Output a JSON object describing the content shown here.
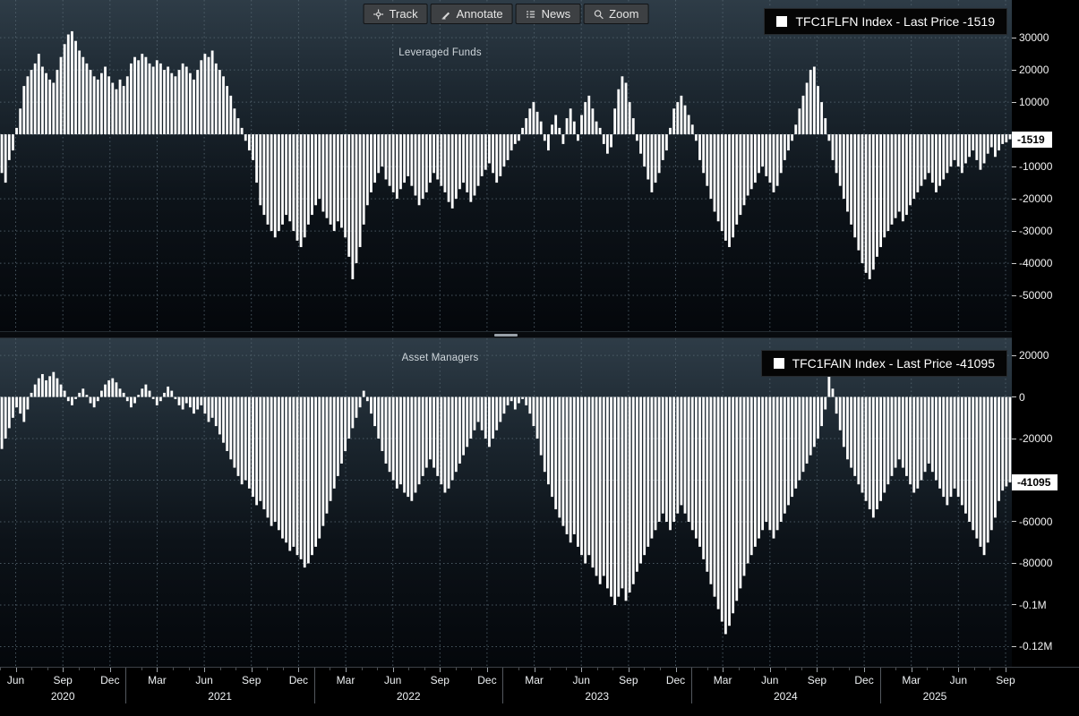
{
  "toolbar": {
    "track_label": "Track",
    "annotate_label": "Annotate",
    "news_label": "News",
    "zoom_label": "Zoom"
  },
  "colors": {
    "bar": "#ffffff",
    "grid": "#54646f",
    "axis_bg": "#000000",
    "panel_bg_top": "#2e3c47",
    "panel_bg_bottom": "#04070b",
    "tag_bg": "#ffffff",
    "tag_text": "#000000",
    "legend_bg": "#050505"
  },
  "x_axis": {
    "months_total": 64.4,
    "month_ticks": [
      {
        "m": 1,
        "label": "Jun"
      },
      {
        "m": 4,
        "label": "Sep"
      },
      {
        "m": 7,
        "label": "Dec"
      },
      {
        "m": 10,
        "label": "Mar"
      },
      {
        "m": 13,
        "label": "Jun"
      },
      {
        "m": 16,
        "label": "Sep"
      },
      {
        "m": 19,
        "label": "Dec"
      },
      {
        "m": 22,
        "label": "Mar"
      },
      {
        "m": 25,
        "label": "Jun"
      },
      {
        "m": 28,
        "label": "Sep"
      },
      {
        "m": 31,
        "label": "Dec"
      },
      {
        "m": 34,
        "label": "Mar"
      },
      {
        "m": 37,
        "label": "Jun"
      },
      {
        "m": 40,
        "label": "Sep"
      },
      {
        "m": 43,
        "label": "Dec"
      },
      {
        "m": 46,
        "label": "Mar"
      },
      {
        "m": 49,
        "label": "Jun"
      },
      {
        "m": 52,
        "label": "Sep"
      },
      {
        "m": 55,
        "label": "Dec"
      },
      {
        "m": 58,
        "label": "Mar"
      },
      {
        "m": 61,
        "label": "Jun"
      },
      {
        "m": 64,
        "label": "Sep"
      }
    ],
    "years": [
      {
        "label": "2020",
        "m_center": 4
      },
      {
        "label": "2021",
        "m_center": 14
      },
      {
        "label": "2022",
        "m_center": 26
      },
      {
        "label": "2023",
        "m_center": 38
      },
      {
        "label": "2024",
        "m_center": 50
      },
      {
        "label": "2025",
        "m_center": 59.5
      }
    ],
    "year_boundaries": [
      8,
      20,
      32,
      44,
      56
    ]
  },
  "chart_data": [
    {
      "type": "bar",
      "name": "TFC1FLFN Index",
      "title": "Leveraged Funds",
      "legend": "TFC1FLFN Index - Last Price -1519",
      "last_price_value": -1519,
      "last_price_label": "-1519",
      "frequency": "weekly",
      "x_start": "2020-05",
      "x_end": "2025-09",
      "ylim": [
        -61100,
        41700
      ],
      "grid_values": [
        30000,
        20000,
        10000,
        0,
        -10000,
        -20000,
        -30000,
        -40000,
        -50000
      ],
      "y_ticks": [
        {
          "v": 30000,
          "label": "30000"
        },
        {
          "v": 20000,
          "label": "20000"
        },
        {
          "v": 10000,
          "label": "10000"
        },
        {
          "v": -10000,
          "label": "-10000"
        },
        {
          "v": -20000,
          "label": "-20000"
        },
        {
          "v": -30000,
          "label": "-30000"
        },
        {
          "v": -40000,
          "label": "-40000"
        },
        {
          "v": -50000,
          "label": "-50000"
        }
      ],
      "values": [
        -12000,
        -15000,
        -8000,
        -5000,
        2000,
        8000,
        15000,
        18000,
        20000,
        22000,
        25000,
        21000,
        19000,
        17000,
        16000,
        20000,
        24000,
        28000,
        31000,
        32000,
        29000,
        26000,
        24000,
        22000,
        20000,
        18000,
        17000,
        19000,
        21000,
        18000,
        16000,
        14000,
        17000,
        15000,
        18000,
        22000,
        24000,
        23000,
        25000,
        24000,
        22000,
        21000,
        23000,
        22000,
        20000,
        21000,
        19000,
        18000,
        20000,
        22000,
        21000,
        19000,
        17000,
        20000,
        23000,
        25000,
        24000,
        26000,
        22000,
        20000,
        18000,
        15000,
        12000,
        8000,
        5000,
        2000,
        -2000,
        -5000,
        -8000,
        -15000,
        -22000,
        -25000,
        -28000,
        -30000,
        -32000,
        -30000,
        -28000,
        -25000,
        -27000,
        -30000,
        -33000,
        -35000,
        -32000,
        -28000,
        -25000,
        -22000,
        -20000,
        -24000,
        -26000,
        -28000,
        -30000,
        -27000,
        -29000,
        -32000,
        -38000,
        -45000,
        -40000,
        -35000,
        -28000,
        -22000,
        -18000,
        -15000,
        -12000,
        -10000,
        -14000,
        -16000,
        -18000,
        -20000,
        -17000,
        -15000,
        -13000,
        -16000,
        -19000,
        -22000,
        -20000,
        -18000,
        -15000,
        -12000,
        -14000,
        -16000,
        -18000,
        -21000,
        -23000,
        -20000,
        -17000,
        -15000,
        -18000,
        -21000,
        -19000,
        -16000,
        -13000,
        -11000,
        -9000,
        -12000,
        -15000,
        -13000,
        -10000,
        -8000,
        -5000,
        -3000,
        -2000,
        2000,
        5000,
        8000,
        10000,
        7000,
        4000,
        -2000,
        -5000,
        3000,
        6000,
        2000,
        -3000,
        5000,
        8000,
        4000,
        -2000,
        6000,
        10000,
        12000,
        8000,
        4000,
        2000,
        -3000,
        -6000,
        -4000,
        8000,
        14000,
        18000,
        16000,
        10000,
        5000,
        -2000,
        -6000,
        -10000,
        -14000,
        -18000,
        -15000,
        -12000,
        -8000,
        -5000,
        2000,
        8000,
        10000,
        12000,
        9000,
        6000,
        3000,
        -2000,
        -8000,
        -12000,
        -16000,
        -20000,
        -24000,
        -27000,
        -30000,
        -33000,
        -35000,
        -32000,
        -28000,
        -25000,
        -22000,
        -19000,
        -17000,
        -15000,
        -12000,
        -10000,
        -13000,
        -15000,
        -18000,
        -16000,
        -12000,
        -8000,
        -5000,
        -2000,
        3000,
        8000,
        12000,
        16000,
        20000,
        21000,
        15000,
        10000,
        5000,
        -2000,
        -8000,
        -12000,
        -16000,
        -20000,
        -24000,
        -28000,
        -32000,
        -36000,
        -40000,
        -43000,
        -45000,
        -42000,
        -38000,
        -35000,
        -32000,
        -30000,
        -28000,
        -26000,
        -24000,
        -27000,
        -25000,
        -22000,
        -20000,
        -18000,
        -16000,
        -14000,
        -12000,
        -15000,
        -18000,
        -16000,
        -14000,
        -12000,
        -10000,
        -8000,
        -10000,
        -12000,
        -9000,
        -7000,
        -5000,
        -8000,
        -11000,
        -9000,
        -6000,
        -4000,
        -7000,
        -5000,
        -3000,
        -2500,
        -1519
      ]
    },
    {
      "type": "bar",
      "name": "TFC1FAIN Index",
      "title": "Asset Managers",
      "legend": "TFC1FAIN Index - Last Price -41095",
      "last_price_value": -41095,
      "last_price_label": "-41095",
      "frequency": "weekly",
      "x_start": "2020-05",
      "x_end": "2025-09",
      "ylim": [
        -129700,
        28200
      ],
      "grid_values": [
        20000,
        0,
        -20000,
        -40000,
        -60000,
        -80000,
        -100000,
        -120000
      ],
      "y_ticks": [
        {
          "v": 20000,
          "label": "20000"
        },
        {
          "v": 0,
          "label": "0"
        },
        {
          "v": -20000,
          "label": "-20000"
        },
        {
          "v": -60000,
          "label": "-60000"
        },
        {
          "v": -80000,
          "label": "-80000"
        },
        {
          "v": -100000,
          "label": "-0.1M"
        },
        {
          "v": -120000,
          "label": "-0.12M"
        }
      ],
      "values": [
        -25000,
        -20000,
        -15000,
        -10000,
        -5000,
        -8000,
        -12000,
        -6000,
        2000,
        6000,
        9000,
        11000,
        8000,
        10000,
        12000,
        9000,
        6000,
        3000,
        -2000,
        -4000,
        -1000,
        2000,
        4000,
        1000,
        -3000,
        -5000,
        -2000,
        3000,
        6000,
        8000,
        9000,
        7000,
        4000,
        2000,
        -2000,
        -5000,
        -3000,
        1000,
        4000,
        6000,
        3000,
        -1000,
        -4000,
        -2000,
        2000,
        5000,
        3000,
        -1000,
        -4000,
        -6000,
        -3000,
        -5000,
        -8000,
        -6000,
        -4000,
        -8000,
        -12000,
        -10000,
        -14000,
        -18000,
        -22000,
        -26000,
        -30000,
        -34000,
        -38000,
        -42000,
        -40000,
        -44000,
        -48000,
        -52000,
        -50000,
        -54000,
        -58000,
        -62000,
        -60000,
        -64000,
        -68000,
        -70000,
        -74000,
        -72000,
        -76000,
        -78000,
        -82000,
        -80000,
        -76000,
        -72000,
        -68000,
        -62000,
        -56000,
        -50000,
        -44000,
        -38000,
        -32000,
        -26000,
        -20000,
        -15000,
        -10000,
        -5000,
        3000,
        -2000,
        -8000,
        -14000,
        -20000,
        -26000,
        -32000,
        -36000,
        -40000,
        -44000,
        -42000,
        -46000,
        -48000,
        -50000,
        -46000,
        -42000,
        -38000,
        -34000,
        -30000,
        -34000,
        -38000,
        -42000,
        -46000,
        -44000,
        -40000,
        -36000,
        -32000,
        -28000,
        -24000,
        -20000,
        -16000,
        -12000,
        -16000,
        -20000,
        -24000,
        -20000,
        -16000,
        -12000,
        -8000,
        -4000,
        -2000,
        -6000,
        -3000,
        -1000,
        -4000,
        -8000,
        -14000,
        -20000,
        -28000,
        -36000,
        -42000,
        -48000,
        -54000,
        -58000,
        -62000,
        -66000,
        -70000,
        -66000,
        -72000,
        -76000,
        -80000,
        -76000,
        -82000,
        -86000,
        -90000,
        -86000,
        -92000,
        -96000,
        -100000,
        -96000,
        -92000,
        -98000,
        -94000,
        -90000,
        -84000,
        -80000,
        -76000,
        -72000,
        -68000,
        -64000,
        -60000,
        -56000,
        -60000,
        -64000,
        -60000,
        -56000,
        -52000,
        -56000,
        -60000,
        -64000,
        -68000,
        -72000,
        -78000,
        -84000,
        -90000,
        -96000,
        -102000,
        -108000,
        -114000,
        -110000,
        -104000,
        -98000,
        -92000,
        -86000,
        -80000,
        -76000,
        -72000,
        -68000,
        -64000,
        -60000,
        -64000,
        -68000,
        -64000,
        -60000,
        -56000,
        -52000,
        -48000,
        -44000,
        -40000,
        -36000,
        -32000,
        -28000,
        -24000,
        -20000,
        -14000,
        -6000,
        14000,
        4000,
        -8000,
        -16000,
        -24000,
        -30000,
        -34000,
        -38000,
        -42000,
        -46000,
        -50000,
        -54000,
        -58000,
        -54000,
        -50000,
        -46000,
        -42000,
        -38000,
        -34000,
        -30000,
        -34000,
        -38000,
        -42000,
        -46000,
        -44000,
        -40000,
        -36000,
        -32000,
        -36000,
        -40000,
        -44000,
        -48000,
        -52000,
        -48000,
        -44000,
        -48000,
        -52000,
        -56000,
        -60000,
        -64000,
        -68000,
        -72000,
        -76000,
        -70000,
        -64000,
        -58000,
        -50000,
        -45000,
        -43000,
        -41095
      ]
    }
  ]
}
